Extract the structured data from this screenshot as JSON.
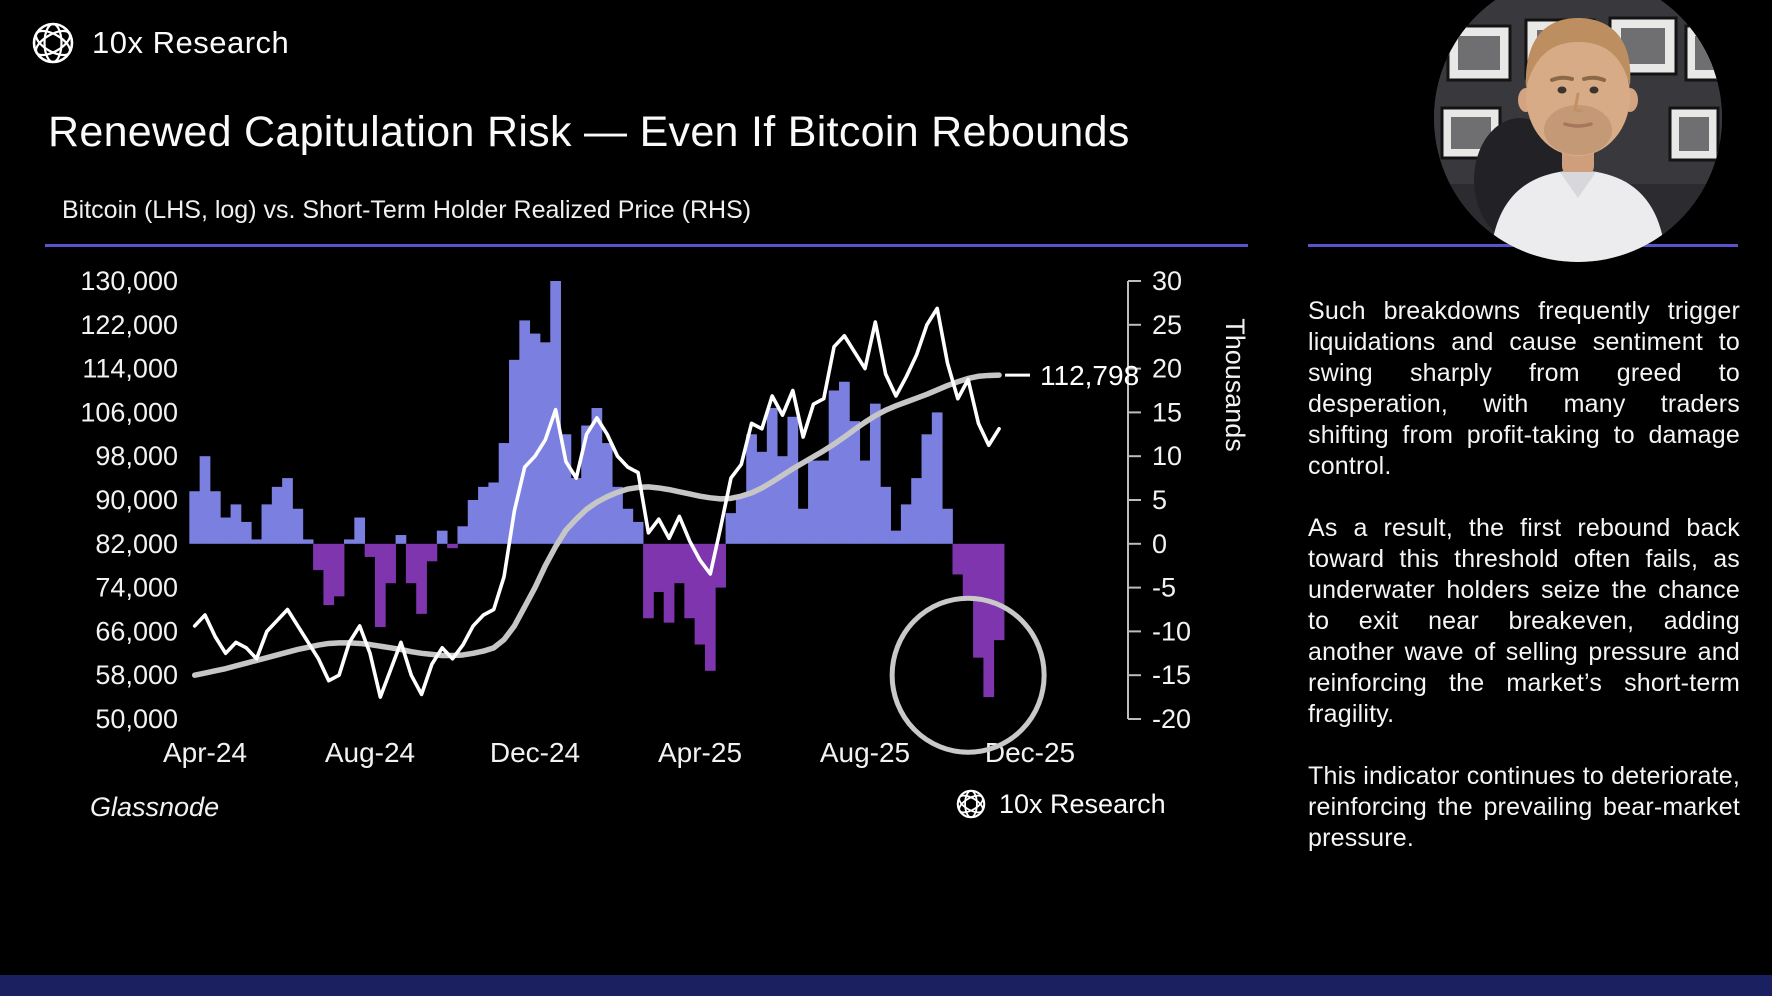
{
  "header": {
    "brand": "10x Research",
    "title": "Renewed Capitulation Risk — Even If Bitcoin Rebounds",
    "subtitle": "Bitcoin (LHS, log) vs. Short-Term Holder Realized Price (RHS)"
  },
  "footer": {
    "source": "Glassnode",
    "brand": "10x Research"
  },
  "colors": {
    "accent_rule": "#5a53cc",
    "bar_positive": "#7b7fe0",
    "bar_negative": "#7e35ad",
    "btc_line": "#ffffff",
    "sth_line": "#c6c6c6",
    "highlight_circle": "#c9c9c9",
    "axis_text": "#f2f2f2",
    "bottom_bar": "#1b2060"
  },
  "sidebar": {
    "paragraphs": [
      "Such breakdowns frequently trigger liquidations and cause sentiment to swing sharply from greed to desperation, with many traders shifting from profit-taking to damage control.",
      "As a result, the first rebound back toward this threshold often fails, as underwater holders seize the chance to exit near breakeven, adding another wave of selling pressure and reinforcing the market’s short-term fragility.",
      "This indicator continues to deteriorate, reinforcing the prevailing bear-market pressure."
    ]
  },
  "chart_data": {
    "type": "bar",
    "title": "Bitcoin (LHS, log) vs. Short-Term Holder Realized Price (RHS)",
    "x_axis": {
      "tick_labels": [
        "Apr-24",
        "Aug-24",
        "Dec-24",
        "Apr-25",
        "Aug-25",
        "Dec-25"
      ],
      "tick_months": [
        0,
        4,
        8,
        12,
        16,
        20
      ]
    },
    "lhs_axis": {
      "tick_labels": [
        "130,000",
        "122,000",
        "114,000",
        "106,000",
        "98,000",
        "90,000",
        "82,000",
        "74,000",
        "66,000",
        "58,000",
        "50,000"
      ],
      "tick_values_thousands": [
        130,
        122,
        114,
        106,
        98,
        90,
        82,
        74,
        66,
        58,
        50
      ],
      "range_thousands": [
        50,
        130
      ]
    },
    "rhs_axis": {
      "label": "Thousands",
      "tick_labels": [
        "30",
        "25",
        "20",
        "15",
        "10",
        "5",
        "0",
        "-5",
        "-10",
        "-15",
        "-20"
      ],
      "tick_values": [
        30,
        25,
        20,
        15,
        10,
        5,
        0,
        -5,
        -10,
        -15,
        -20
      ],
      "range": [
        -20,
        30
      ]
    },
    "x_start_month": -0.25,
    "x_step_months": 0.25,
    "series": [
      {
        "name": "BTC price minus STH realized price (RHS, thousands)",
        "type": "bar",
        "values": [
          6,
          10,
          6,
          3,
          4.5,
          2.5,
          0.5,
          4.5,
          6.5,
          7.5,
          4,
          0.5,
          -3,
          -7,
          -6,
          0.5,
          3,
          -1.5,
          -9.5,
          -4.5,
          1,
          -4.5,
          -8,
          -2,
          1.5,
          -0.5,
          2,
          5,
          6.5,
          7,
          11.5,
          21,
          25.5,
          24,
          23,
          30,
          12.5,
          7.5,
          13.5,
          15.5,
          11.5,
          6.5,
          4,
          2.5,
          -8.5,
          -5.5,
          -9,
          -4.5,
          -8.5,
          -11.5,
          -14.5,
          -5,
          3.5,
          5.5,
          12.5,
          10.5,
          15.5,
          10,
          14.5,
          4,
          9.5,
          9.5,
          17.5,
          18.5,
          14,
          9.5,
          16,
          6.5,
          1.5,
          4.5,
          7.5,
          12.5,
          15,
          4,
          -3.5,
          -6,
          -13,
          -17.5,
          -11
        ]
      },
      {
        "name": "Bitcoin price (LHS, thousands USD)",
        "type": "line",
        "values": [
          67,
          69,
          65,
          62,
          64,
          63,
          61,
          66,
          68,
          70,
          67,
          64,
          61,
          57,
          58,
          64,
          67,
          62,
          54,
          59,
          64,
          58,
          54.5,
          60,
          63,
          61,
          63.5,
          67,
          69,
          70,
          76,
          88,
          96,
          98,
          101,
          106.5,
          97,
          94,
          102,
          105,
          102,
          98,
          96,
          95,
          84,
          86.5,
          83,
          87,
          82.5,
          79,
          76.5,
          85,
          94,
          96.5,
          104,
          103,
          109,
          105.5,
          110,
          101.5,
          107.5,
          108.5,
          118,
          120,
          117,
          114,
          122.5,
          113,
          109,
          112.5,
          116.5,
          122,
          125,
          115,
          108.5,
          112,
          104,
          100,
          103
        ]
      },
      {
        "name": "Short-Term Holder Realized Price (LHS, thousands USD)",
        "type": "line",
        "values": [
          58,
          58.4,
          58.8,
          59.2,
          59.7,
          60.2,
          60.7,
          61.2,
          61.7,
          62.2,
          62.7,
          63.1,
          63.5,
          63.8,
          63.9,
          63.9,
          63.8,
          63.6,
          63.3,
          63,
          62.7,
          62.3,
          62,
          61.8,
          61.6,
          61.6,
          61.7,
          62,
          62.4,
          63,
          64.5,
          67,
          70.5,
          74,
          78,
          81.5,
          84.5,
          86.5,
          88.3,
          89.6,
          90.6,
          91.4,
          92,
          92.3,
          92.4,
          92.2,
          91.9,
          91.5,
          91.1,
          90.7,
          90.4,
          90.2,
          90.3,
          90.7,
          91.3,
          92.2,
          93.3,
          94.5,
          95.7,
          96.8,
          97.9,
          99,
          100.2,
          101.5,
          102.9,
          104.2,
          105.4,
          106.4,
          107.2,
          107.9,
          108.6,
          109.3,
          110.1,
          110.9,
          111.6,
          112.2,
          112.6,
          112.75,
          112.8
        ]
      }
    ],
    "annotation": {
      "text": "112,798",
      "value_lhs_thousands": 112.798
    },
    "highlight_circle": {
      "x_month": 18.5,
      "y_rhs": -15,
      "radius_px": 76
    }
  }
}
